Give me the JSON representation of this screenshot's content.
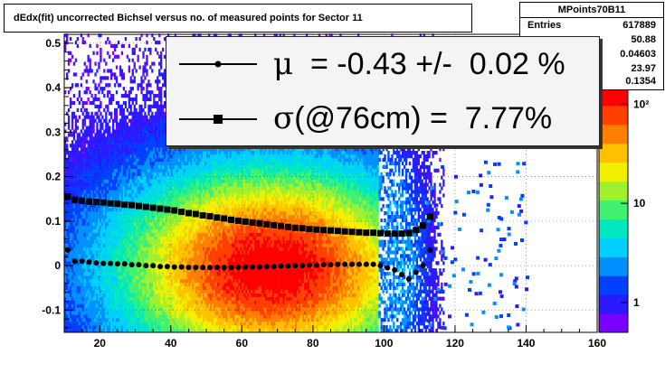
{
  "title": "dEdx(fit) uncorrected Bichsel versus no. of measured points for Sector 11",
  "stats": {
    "name": "MPoints70B11",
    "rows": [
      {
        "key": "Entries",
        "value": "617889"
      },
      {
        "key": "",
        "value": "50.88"
      },
      {
        "key": "",
        "value": "0.04603"
      },
      {
        "key": "",
        "value": "23.97"
      },
      {
        "key": "",
        "value": "0.1354"
      }
    ]
  },
  "legend": {
    "mu_symbol": "μ",
    "mu_text": "  = -0.43 +/-  0.02 %",
    "sigma_symbol": "σ",
    "sigma_text": "(@76cm) =  7.77%"
  },
  "colors": {
    "mean_marker": "#000000",
    "sigma_marker": "#000000",
    "palette": [
      "#7a00ff",
      "#2a1aff",
      "#0040ff",
      "#0090ff",
      "#00d0ff",
      "#00e8c0",
      "#40f070",
      "#a0f030",
      "#f0f000",
      "#ffc000",
      "#ff8000",
      "#ff4000",
      "#ff0000"
    ]
  },
  "chart_data": {
    "type": "heatmap",
    "title": "dEdx(fit) uncorrected Bichsel versus no. of measured points for Sector 11",
    "xlabel": "",
    "ylabel": "",
    "xlim": [
      10,
      160
    ],
    "ylim": [
      -0.15,
      0.52
    ],
    "x_ticks": [
      20,
      40,
      60,
      80,
      100,
      120,
      140,
      160
    ],
    "y_ticks": [
      -0.1,
      0,
      0.1,
      0.2,
      0.3,
      0.4,
      0.5
    ],
    "y_tick_labels": [
      "-0.1",
      "0",
      "0.1",
      "0.2",
      "0.3",
      "0.4",
      "0.5"
    ],
    "z_scale": "log",
    "z_ticks": [
      1,
      10,
      100
    ],
    "z_tick_labels": [
      "1",
      "10",
      "10²"
    ],
    "grid": true,
    "series": [
      {
        "x": [
          11,
          13,
          15,
          17,
          19,
          21,
          23,
          25,
          27,
          29,
          31,
          33,
          35,
          37,
          39,
          41,
          43,
          45,
          47,
          49,
          51,
          53,
          55,
          57,
          59,
          61,
          63,
          65,
          67,
          69,
          71,
          73,
          75,
          77,
          79,
          81,
          83,
          85,
          87,
          89,
          91,
          93,
          95,
          97,
          99,
          101,
          103,
          105,
          107,
          109,
          111,
          113
        ],
        "y": [
          0.035,
          0.01,
          0.01,
          0.008,
          0.006,
          0.005,
          0.005,
          0.004,
          0.004,
          0.002,
          0.002,
          0.0,
          0.0,
          -0.002,
          -0.002,
          -0.003,
          -0.003,
          -0.004,
          -0.004,
          -0.004,
          -0.004,
          -0.004,
          -0.004,
          -0.004,
          -0.004,
          -0.003,
          -0.003,
          -0.003,
          -0.002,
          -0.002,
          -0.001,
          -0.001,
          0.0,
          0.0,
          0.001,
          0.001,
          0.002,
          0.002,
          0.003,
          0.003,
          0.003,
          0.003,
          0.003,
          0.003,
          0.0,
          -0.005,
          -0.01,
          -0.02,
          -0.03,
          -0.015,
          0.0,
          0.035
        ]
      },
      {
        "x": [
          11,
          13,
          15,
          17,
          19,
          21,
          23,
          25,
          27,
          29,
          31,
          33,
          35,
          37,
          39,
          41,
          43,
          45,
          47,
          49,
          51,
          53,
          55,
          57,
          59,
          61,
          63,
          65,
          67,
          69,
          71,
          73,
          75,
          77,
          79,
          81,
          83,
          85,
          87,
          89,
          91,
          93,
          95,
          97,
          99,
          101,
          103,
          105,
          107,
          109,
          111,
          113
        ],
        "y": [
          0.155,
          0.148,
          0.146,
          0.144,
          0.143,
          0.142,
          0.14,
          0.139,
          0.137,
          0.136,
          0.134,
          0.132,
          0.13,
          0.128,
          0.126,
          0.124,
          0.121,
          0.118,
          0.116,
          0.113,
          0.111,
          0.108,
          0.106,
          0.103,
          0.101,
          0.099,
          0.097,
          0.095,
          0.093,
          0.091,
          0.089,
          0.087,
          0.085,
          0.084,
          0.082,
          0.081,
          0.08,
          0.079,
          0.078,
          0.077,
          0.076,
          0.075,
          0.074,
          0.074,
          0.073,
          0.072,
          0.072,
          0.072,
          0.073,
          0.08,
          0.09,
          0.11
        ]
      }
    ]
  }
}
